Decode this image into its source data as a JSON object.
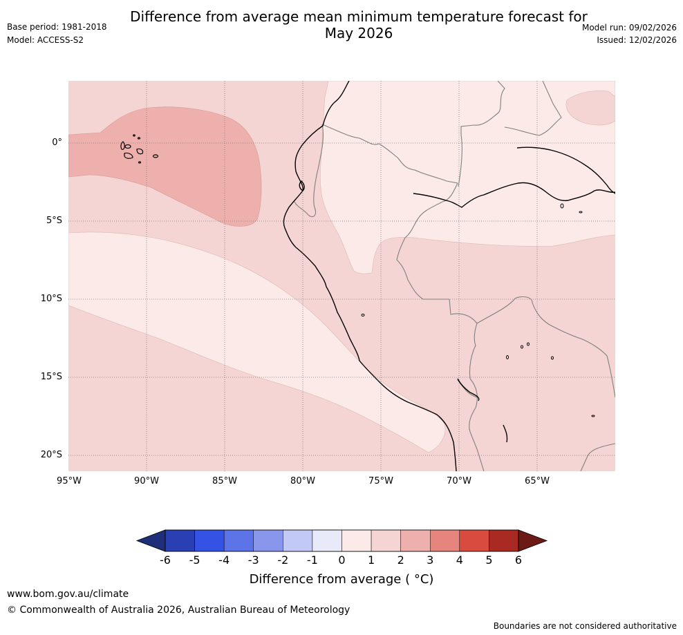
{
  "header": {
    "title_line1": "Difference from average mean minimum temperature forecast for",
    "title_line2": "May 2026",
    "base_period": "Base period: 1981-2018",
    "model": "Model: ACCESS-S2",
    "model_run": "Model run: 09/02/2026",
    "issued": "Issued: 12/02/2026"
  },
  "map": {
    "lat_labels": [
      "0°",
      "5°S",
      "10°S",
      "15°S",
      "20°S"
    ],
    "lon_labels": [
      "95°W",
      "90°W",
      "85°W",
      "80°W",
      "75°W",
      "70°W",
      "65°W"
    ],
    "colors": {
      "anomaly_0_1": "#fbeae8",
      "anomaly_1_2": "#f5d5d3",
      "anomaly_2_3": "#edb0ad",
      "coastline": "#000000",
      "border": "#7f7f7f",
      "grid": "#7a7a7a"
    }
  },
  "colorbar": {
    "ticks": [
      "-6",
      "-5",
      "-4",
      "-3",
      "-2",
      "-1",
      "0",
      "1",
      "2",
      "3",
      "4",
      "5",
      "6"
    ],
    "colors": [
      "#1f2e78",
      "#2a3fb4",
      "#3452e4",
      "#5c74e8",
      "#8896ec",
      "#c2c9f4",
      "#e8eafa",
      "#fbeae8",
      "#f5d5d3",
      "#edb0ad",
      "#e5857e",
      "#d94a3f",
      "#a82a22",
      "#6b1a16"
    ],
    "label": "Difference from average ( °C)"
  },
  "footer": {
    "url": "www.bom.gov.au/climate",
    "copyright": "© Commonwealth of Australia 2026, Australian Bureau of Meteorology",
    "disclaimer": "Boundaries are not considered authoritative"
  }
}
